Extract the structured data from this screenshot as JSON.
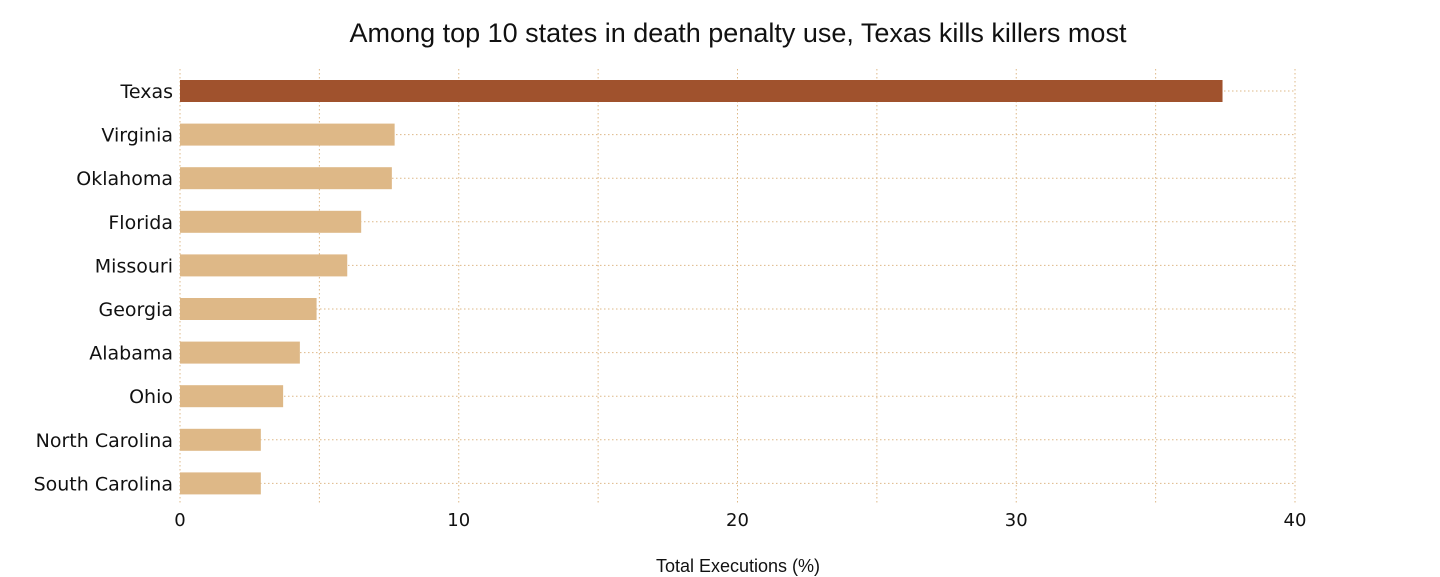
{
  "chart_data": {
    "type": "bar",
    "orientation": "horizontal",
    "title": "Among top 10 states in death penalty use, Texas kills killers most",
    "xlabel": "Total Executions (%)",
    "ylabel": "",
    "categories": [
      "Texas",
      "Virginia",
      "Oklahoma",
      "Florida",
      "Missouri",
      "Georgia",
      "Alabama",
      "Ohio",
      "North Carolina",
      "South Carolina"
    ],
    "values": [
      37.4,
      7.7,
      7.6,
      6.5,
      6.0,
      4.9,
      4.3,
      3.7,
      2.9,
      2.9
    ],
    "xlim": [
      0,
      40
    ],
    "xticks": [
      0,
      10,
      20,
      30,
      40
    ],
    "grid": true,
    "colors": {
      "highlight": "#a0522d",
      "bar": "#deb887",
      "grid": "#deb887"
    }
  }
}
